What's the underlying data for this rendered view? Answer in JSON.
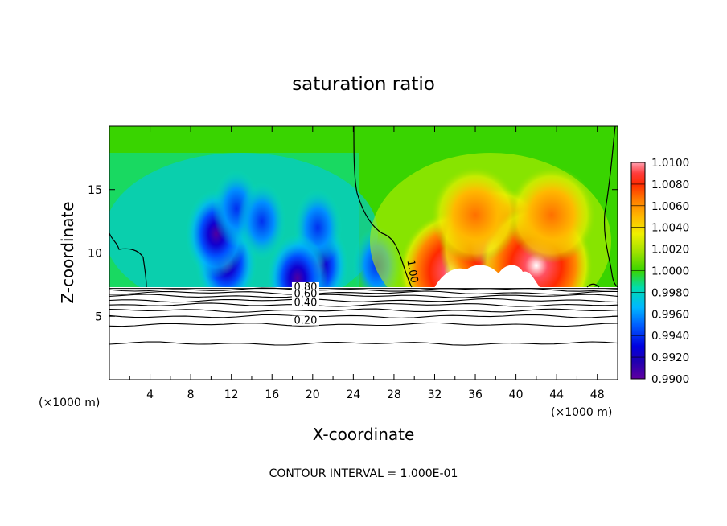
{
  "chart_data": {
    "type": "heatmap",
    "title": "saturation ratio",
    "xlabel": "X-coordinate",
    "ylabel": "Z-coordinate",
    "x_unit_left": "(×1000 m)",
    "x_unit_right": "(×1000 m)",
    "xlim": [
      0,
      50
    ],
    "ylim": [
      0,
      20
    ],
    "x_ticks": [
      4,
      8,
      12,
      16,
      20,
      24,
      28,
      32,
      36,
      40,
      44,
      48
    ],
    "y_ticks": [
      5,
      10,
      15
    ],
    "footer": "CONTOUR INTERVAL = 1.000E-01",
    "colorbar": {
      "labels": [
        "1.0100",
        "1.0080",
        "1.0060",
        "1.0040",
        "1.0020",
        "1.0000",
        "0.9980",
        "0.9960",
        "0.9940",
        "0.9920",
        "0.9900"
      ],
      "colors": [
        "#ff9fb0",
        "#ff3c3c",
        "#ff2a00",
        "#ff7a00",
        "#ffb800",
        "#f0f000",
        "#98e000",
        "#39d400",
        "#00dcb0",
        "#00b8ff",
        "#0060ff",
        "#0000e0",
        "#2000b0",
        "#6000a0"
      ]
    },
    "contour_labels": [
      {
        "text": "0.80",
        "x": 19.3,
        "z": 7.05
      },
      {
        "text": "0.60",
        "x": 19.3,
        "z": 6.5
      },
      {
        "text": "0.40",
        "x": 19.3,
        "z": 5.8
      },
      {
        "text": "0.20",
        "x": 19.3,
        "z": 4.4
      },
      {
        "text": "1.00",
        "x": 29.5,
        "z": 8.5
      }
    ],
    "terrain_height": 7.2,
    "dry_cells": [
      {
        "x": 11.5,
        "z": 9.2,
        "level": 0.99
      },
      {
        "x": 10.5,
        "z": 11.5,
        "level": 0.992
      },
      {
        "x": 12.5,
        "z": 13.5,
        "level": 0.994
      },
      {
        "x": 15.0,
        "z": 12.5,
        "level": 0.993
      },
      {
        "x": 20.5,
        "z": 9.0,
        "level": 0.991
      },
      {
        "x": 20.5,
        "z": 12.0,
        "level": 0.993
      },
      {
        "x": 26.3,
        "z": 9.0,
        "level": 0.994
      },
      {
        "x": 18.5,
        "z": 8.0,
        "level": 0.992
      }
    ],
    "moist_cells": [
      {
        "x": 34.0,
        "z": 8.5,
        "level": 1.01
      },
      {
        "x": 38.0,
        "z": 10.5,
        "level": 1.006
      },
      {
        "x": 42.0,
        "z": 9.0,
        "level": 1.006
      },
      {
        "x": 43.5,
        "z": 13.0,
        "level": 1.004
      },
      {
        "x": 36.0,
        "z": 13.0,
        "level": 1.004
      }
    ]
  }
}
